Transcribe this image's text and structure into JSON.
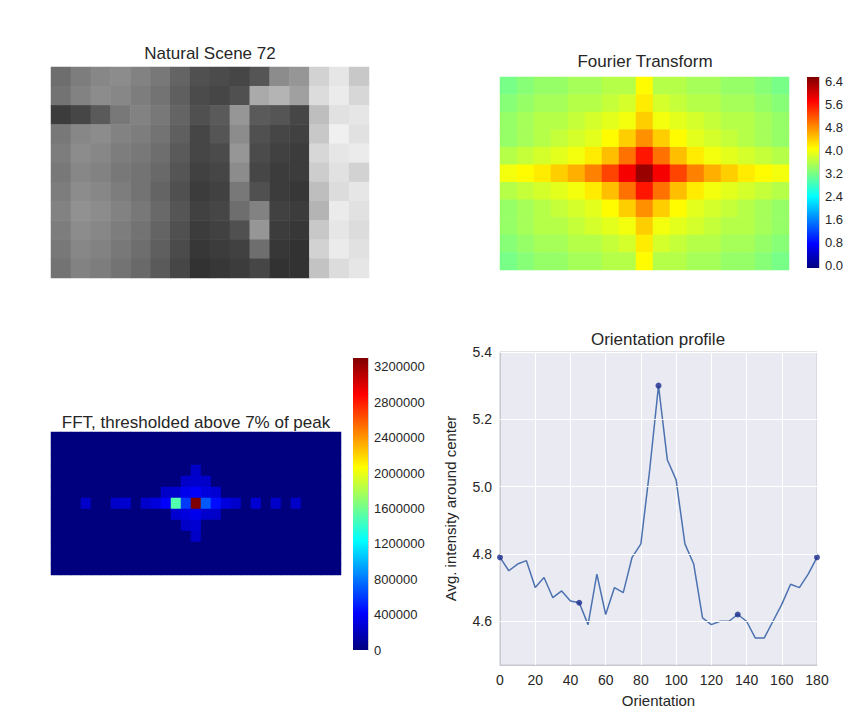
{
  "chart_data": [
    {
      "type": "heatmap",
      "title": "Natural Scene 72",
      "color": "gray",
      "tick_labels": false,
      "cell_range": [
        0,
        255
      ],
      "cells": [
        [
          110,
          125,
          135,
          140,
          130,
          120,
          100,
          80,
          75,
          70,
          85,
          140,
          150,
          210,
          230,
          200
        ],
        [
          115,
          130,
          140,
          135,
          125,
          115,
          95,
          75,
          70,
          80,
          170,
          180,
          160,
          220,
          235,
          215
        ],
        [
          60,
          70,
          90,
          120,
          130,
          120,
          100,
          80,
          90,
          150,
          90,
          85,
          70,
          190,
          225,
          230
        ],
        [
          120,
          135,
          140,
          130,
          125,
          115,
          95,
          70,
          85,
          140,
          80,
          70,
          65,
          200,
          240,
          225
        ],
        [
          125,
          140,
          135,
          125,
          120,
          110,
          90,
          70,
          75,
          150,
          75,
          65,
          60,
          215,
          230,
          235
        ],
        [
          120,
          135,
          130,
          120,
          115,
          105,
          85,
          65,
          70,
          140,
          70,
          60,
          60,
          205,
          225,
          210
        ],
        [
          125,
          140,
          135,
          125,
          115,
          100,
          80,
          60,
          65,
          120,
          80,
          60,
          55,
          190,
          220,
          230
        ],
        [
          130,
          145,
          140,
          130,
          120,
          105,
          85,
          65,
          70,
          110,
          130,
          65,
          60,
          180,
          235,
          225
        ],
        [
          125,
          140,
          135,
          125,
          115,
          100,
          80,
          60,
          65,
          80,
          150,
          60,
          55,
          200,
          230,
          220
        ],
        [
          120,
          135,
          130,
          120,
          110,
          95,
          75,
          55,
          60,
          65,
          110,
          55,
          50,
          210,
          235,
          225
        ],
        [
          115,
          130,
          125,
          115,
          105,
          90,
          70,
          50,
          55,
          60,
          70,
          50,
          50,
          195,
          220,
          230
        ]
      ]
    },
    {
      "type": "heatmap",
      "title": "Fourier Transform",
      "color": "jet",
      "tick_labels": false,
      "colorbar_range": [
        -0.07,
        6.57
      ],
      "colorbar_ticks": [
        {
          "value": 0.0,
          "label": "0.0"
        },
        0.8,
        1.6,
        2.4,
        3.2,
        {
          "value": 4.0,
          "label": "4.0"
        },
        4.8,
        5.6,
        6.4
      ],
      "cells": [
        [
          3.2,
          3.3,
          3.4,
          3.4,
          3.5,
          3.5,
          3.6,
          3.6,
          4.1,
          3.6,
          3.6,
          3.5,
          3.5,
          3.4,
          3.4,
          3.3,
          3.2
        ],
        [
          3.3,
          3.4,
          3.5,
          3.5,
          3.6,
          3.6,
          3.7,
          3.8,
          4.2,
          3.8,
          3.7,
          3.6,
          3.6,
          3.5,
          3.5,
          3.4,
          3.3
        ],
        [
          3.4,
          3.5,
          3.6,
          3.6,
          3.7,
          3.8,
          3.9,
          4.0,
          4.4,
          4.0,
          3.9,
          3.8,
          3.7,
          3.6,
          3.6,
          3.5,
          3.4
        ],
        [
          3.4,
          3.5,
          3.6,
          3.7,
          3.8,
          3.9,
          4.1,
          4.4,
          4.8,
          4.4,
          4.1,
          3.9,
          3.8,
          3.7,
          3.6,
          3.5,
          3.4
        ],
        [
          3.6,
          3.7,
          3.8,
          3.9,
          4.0,
          4.2,
          4.5,
          5.0,
          5.6,
          5.0,
          4.5,
          4.2,
          4.0,
          3.9,
          3.8,
          3.7,
          3.6
        ],
        [
          4.0,
          4.1,
          4.2,
          4.4,
          4.6,
          4.9,
          5.3,
          5.8,
          6.4,
          5.8,
          5.3,
          4.9,
          4.6,
          4.4,
          4.2,
          4.1,
          4.0
        ],
        [
          3.6,
          3.7,
          3.8,
          3.9,
          4.0,
          4.2,
          4.5,
          5.0,
          5.6,
          5.0,
          4.5,
          4.2,
          4.0,
          3.9,
          3.8,
          3.7,
          3.6
        ],
        [
          3.4,
          3.5,
          3.6,
          3.7,
          3.8,
          3.9,
          4.1,
          4.4,
          4.8,
          4.4,
          4.1,
          3.9,
          3.8,
          3.7,
          3.6,
          3.5,
          3.4
        ],
        [
          3.4,
          3.5,
          3.6,
          3.6,
          3.7,
          3.8,
          3.9,
          4.0,
          4.4,
          4.0,
          3.9,
          3.8,
          3.7,
          3.6,
          3.6,
          3.5,
          3.4
        ],
        [
          3.3,
          3.4,
          3.5,
          3.5,
          3.6,
          3.6,
          3.7,
          3.8,
          4.2,
          3.8,
          3.7,
          3.6,
          3.6,
          3.5,
          3.5,
          3.4,
          3.3
        ],
        [
          3.2,
          3.3,
          3.4,
          3.4,
          3.5,
          3.5,
          3.6,
          3.6,
          4.1,
          3.6,
          3.6,
          3.5,
          3.5,
          3.4,
          3.4,
          3.3,
          3.2
        ]
      ]
    },
    {
      "type": "heatmap",
      "title": "FFT, thresholded above 7% of peak",
      "color": "jet",
      "tick_labels": false,
      "colorbar_range": [
        0,
        3300000
      ],
      "colorbar_ticks": [
        0,
        400000,
        800000,
        1200000,
        1600000,
        2000000,
        2400000,
        2800000,
        3200000
      ],
      "cells": [
        [
          0,
          0,
          0,
          0,
          0,
          0,
          0,
          0,
          0,
          0,
          0,
          0,
          0,
          0,
          0,
          0,
          0,
          0,
          0,
          0,
          0,
          0,
          0,
          0,
          0,
          0,
          0,
          0,
          0
        ],
        [
          0,
          0,
          0,
          0,
          0,
          0,
          0,
          0,
          0,
          0,
          0,
          0,
          0,
          0,
          0,
          0,
          0,
          0,
          0,
          0,
          0,
          0,
          0,
          0,
          0,
          0,
          0,
          0,
          0
        ],
        [
          0,
          0,
          0,
          0,
          0,
          0,
          0,
          0,
          0,
          0,
          0,
          0,
          0,
          0,
          0,
          0,
          0,
          0,
          0,
          0,
          0,
          0,
          0,
          0,
          0,
          0,
          0,
          0,
          0
        ],
        [
          0,
          0,
          0,
          0,
          0,
          0,
          0,
          0,
          0,
          0,
          0,
          0,
          0,
          0,
          240000,
          0,
          0,
          0,
          0,
          0,
          0,
          0,
          0,
          0,
          0,
          0,
          0,
          0,
          0
        ],
        [
          0,
          0,
          0,
          0,
          0,
          0,
          0,
          0,
          0,
          0,
          0,
          0,
          0,
          240000,
          250000,
          240000,
          0,
          0,
          0,
          0,
          0,
          0,
          0,
          0,
          0,
          0,
          0,
          0,
          0
        ],
        [
          0,
          0,
          0,
          0,
          0,
          0,
          0,
          0,
          0,
          0,
          0,
          240000,
          250000,
          350000,
          400000,
          300000,
          270000,
          0,
          0,
          0,
          0,
          0,
          0,
          0,
          0,
          0,
          0,
          0,
          0
        ],
        [
          0,
          0,
          0,
          240000,
          0,
          0,
          240000,
          260000,
          0,
          250000,
          300000,
          400000,
          1500000,
          600000,
          3300000,
          700000,
          450000,
          300000,
          250000,
          0,
          270000,
          0,
          240000,
          0,
          240000,
          0,
          0,
          0,
          0
        ],
        [
          0,
          0,
          0,
          0,
          0,
          0,
          0,
          0,
          0,
          0,
          0,
          0,
          270000,
          300000,
          350000,
          250000,
          240000,
          0,
          0,
          0,
          0,
          0,
          0,
          0,
          0,
          0,
          0,
          0,
          0
        ],
        [
          0,
          0,
          0,
          0,
          0,
          0,
          0,
          0,
          0,
          0,
          0,
          0,
          0,
          240000,
          270000,
          0,
          0,
          0,
          0,
          0,
          0,
          0,
          0,
          0,
          0,
          0,
          0,
          0,
          0
        ],
        [
          0,
          0,
          0,
          0,
          0,
          0,
          0,
          0,
          0,
          0,
          0,
          0,
          0,
          0,
          240000,
          0,
          0,
          0,
          0,
          0,
          0,
          0,
          0,
          0,
          0,
          0,
          0,
          0,
          0
        ],
        [
          0,
          0,
          0,
          0,
          0,
          0,
          0,
          0,
          0,
          0,
          0,
          0,
          0,
          0,
          0,
          0,
          0,
          0,
          0,
          0,
          0,
          0,
          0,
          0,
          0,
          0,
          0,
          0,
          0
        ],
        [
          0,
          0,
          0,
          0,
          0,
          0,
          0,
          0,
          0,
          0,
          0,
          0,
          0,
          0,
          0,
          0,
          0,
          0,
          0,
          0,
          0,
          0,
          0,
          0,
          0,
          0,
          0,
          0,
          0
        ],
        [
          0,
          0,
          0,
          0,
          0,
          0,
          0,
          0,
          0,
          0,
          0,
          0,
          0,
          0,
          0,
          0,
          0,
          0,
          0,
          0,
          0,
          0,
          0,
          0,
          0,
          0,
          0,
          0,
          0
        ]
      ]
    },
    {
      "type": "line",
      "title": "Orientation profile",
      "xlabel": "Orientation",
      "ylabel": "Avg. intensity around center",
      "x": [
        0,
        5,
        10,
        15,
        20,
        25,
        30,
        35,
        40,
        45,
        50,
        55,
        60,
        65,
        70,
        75,
        80,
        85,
        90,
        95,
        100,
        105,
        110,
        115,
        120,
        125,
        130,
        135,
        140,
        145,
        150,
        155,
        160,
        165,
        170,
        175,
        180
      ],
      "series": [
        {
          "type": "line",
          "color": "#4c72b0",
          "line_style": "solid",
          "values": [
            4.79,
            4.75,
            4.77,
            4.78,
            4.7,
            4.73,
            4.67,
            4.69,
            4.66,
            4.655,
            4.59,
            4.74,
            4.62,
            4.7,
            4.685,
            4.79,
            4.83,
            5.05,
            5.3,
            5.08,
            5.02,
            4.83,
            4.77,
            4.61,
            4.59,
            4.6,
            4.6,
            4.62,
            4.6,
            4.55,
            4.55,
            4.6,
            4.65,
            4.71,
            4.7,
            4.74,
            4.79
          ]
        },
        {
          "type": "scatter",
          "color": "#1c2c8c",
          "marker": "circle",
          "x": [
            0,
            45,
            90,
            135,
            180
          ],
          "values": [
            4.79,
            4.655,
            5.3,
            4.62,
            4.79
          ]
        }
      ],
      "xlim": [
        0,
        180
      ],
      "xticks": [
        0,
        20,
        40,
        60,
        80,
        100,
        120,
        140,
        160,
        180
      ],
      "ylim": [
        4.47,
        5.4
      ],
      "yticks": [
        4.6,
        4.8,
        {
          "value": 5.0,
          "label": "5.0"
        },
        5.2,
        5.4
      ],
      "grid": true
    }
  ]
}
